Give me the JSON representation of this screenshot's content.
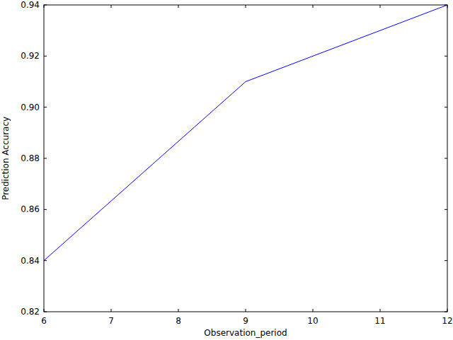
{
  "chart_data": {
    "type": "line",
    "x_label": "Observation_period",
    "y_label": "Prediction Accuracy",
    "x": [
      6,
      9,
      12
    ],
    "values": [
      0.84,
      0.91,
      0.94
    ],
    "color": "#0000ff",
    "xlim": [
      6,
      12
    ],
    "xticks": [
      6,
      7,
      8,
      9,
      10,
      11,
      12
    ],
    "ylim": [
      0.82,
      0.94
    ],
    "yticks": [
      0.82,
      0.84,
      0.86,
      0.88,
      {
        "value": 0.9,
        "label": "0.90"
      },
      0.92,
      0.94
    ],
    "grid": false
  }
}
